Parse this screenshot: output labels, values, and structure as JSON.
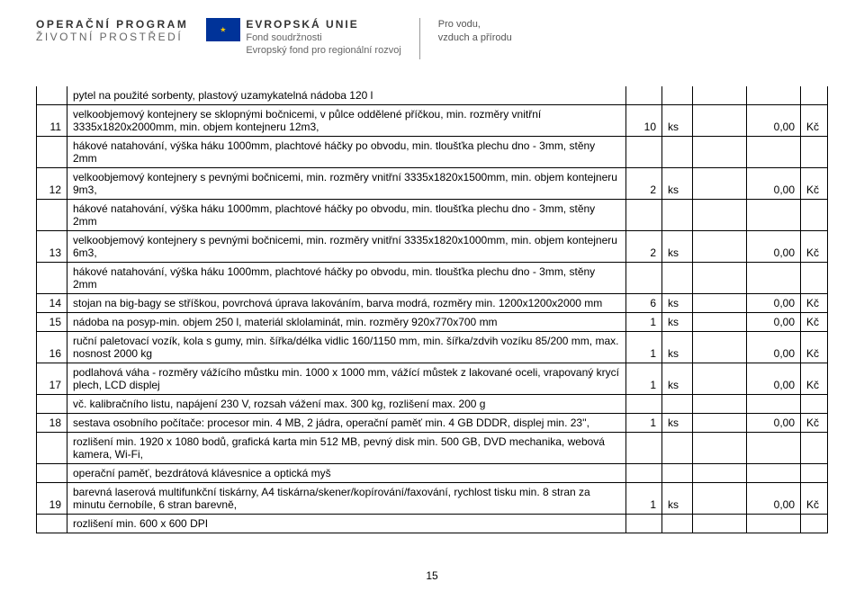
{
  "header": {
    "logo1_line1": "OPERAČNÍ PROGRAM",
    "logo1_line2": "ŽIVOTNÍ PROSTŘEDÍ",
    "eu_title": "EVROPSKÁ UNIE",
    "eu_sub1": "Fond soudržnosti",
    "eu_sub2": "Evropský fond pro regionální rozvoj",
    "tagline1": "Pro vodu,",
    "tagline2": "vzduch a přírodu"
  },
  "table": {
    "first_row_continuation": "pytel na použité sorbenty, plastový uzamykatelná nádoba 120 l",
    "rows": [
      {
        "num": "11",
        "desc": "velkoobjemový kontejnery se sklopnými bočnicemi, v půlce oddělené příčkou, min. rozměry vnitřní 3335x1820x2000mm, min. objem kontejneru 12m3,",
        "extra": "hákové natahování, výška háku 1000mm, plachtové háčky po obvodu, min. tloušťka plechu dno - 3mm, stěny 2mm",
        "qty": "10",
        "unit": "ks",
        "price": "0,00",
        "cur": "Kč"
      },
      {
        "num": "12",
        "desc": "velkoobjemový kontejnery s pevnými bočnicemi, min. rozměry vnitřní 3335x1820x1500mm, min. objem kontejneru 9m3,",
        "extra": "hákové natahování, výška háku 1000mm, plachtové háčky po obvodu, min. tloušťka plechu dno - 3mm, stěny 2mm",
        "qty": "2",
        "unit": "ks",
        "price": "0,00",
        "cur": "Kč"
      },
      {
        "num": "13",
        "desc": "velkoobjemový kontejnery s pevnými bočnicemi, min. rozměry vnitřní 3335x1820x1000mm, min. objem kontejneru 6m3,",
        "extra": "hákové natahování, výška háku 1000mm, plachtové háčky po obvodu, min. tloušťka plechu dno - 3mm, stěny 2mm",
        "qty": "2",
        "unit": "ks",
        "price": "0,00",
        "cur": "Kč"
      },
      {
        "num": "14",
        "desc": "stojan na big-bagy se stříškou, povrchová úprava lakováním, barva modrá, rozměry min. 1200x1200x2000 mm",
        "extra": "",
        "qty": "6",
        "unit": "ks",
        "price": "0,00",
        "cur": "Kč"
      },
      {
        "num": "15",
        "desc": "nádoba na posyp-min. objem 250 l, materiál sklolaminát, min. rozměry 920x770x700 mm",
        "extra": "",
        "qty": "1",
        "unit": "ks",
        "price": "0,00",
        "cur": "Kč"
      },
      {
        "num": "16",
        "desc": "ruční paletovací vozík, kola s gumy, min. šířka/délka vidlic 160/1150 mm, min. šířka/zdvih vozíku 85/200 mm, max. nosnost 2000 kg",
        "extra": "",
        "qty": "1",
        "unit": "ks",
        "price": "0,00",
        "cur": "Kč"
      },
      {
        "num": "17",
        "desc": "podlahová váha - rozměry vážícího můstku min. 1000 x 1000 mm, vážící můstek z lakované oceli, vrapovaný krycí plech, LCD displej",
        "extra": "vč. kalibračního listu, napájení 230 V, rozsah vážení max. 300 kg, rozlišení max. 200 g",
        "qty": "1",
        "unit": "ks",
        "price": "0,00",
        "cur": "Kč"
      },
      {
        "num": "18",
        "desc": "sestava osobního počítače: procesor min. 4 MB, 2 jádra, operační paměť min. 4 GB DDDR, displej min. 23'',",
        "extra": "rozlišení min. 1920 x 1080 bodů, grafická karta min 512 MB, pevný disk min. 500 GB, DVD mechanika, webová kamera, Wi-Fi,",
        "extra2": "operační paměť, bezdrátová klávesnice a optická myš",
        "qty": "1",
        "unit": "ks",
        "price": "0,00",
        "cur": "Kč"
      },
      {
        "num": "19",
        "desc": "barevná laserová multifunkční tiskárny, A4 tiskárna/skener/kopírování/faxování, rychlost tisku min. 8 stran za minutu černobíle, 6 stran barevně,",
        "extra": "rozlišení min. 600 x 600 DPI",
        "qty": "1",
        "unit": "ks",
        "price": "0,00",
        "cur": "Kč"
      }
    ]
  },
  "page_number": "15"
}
